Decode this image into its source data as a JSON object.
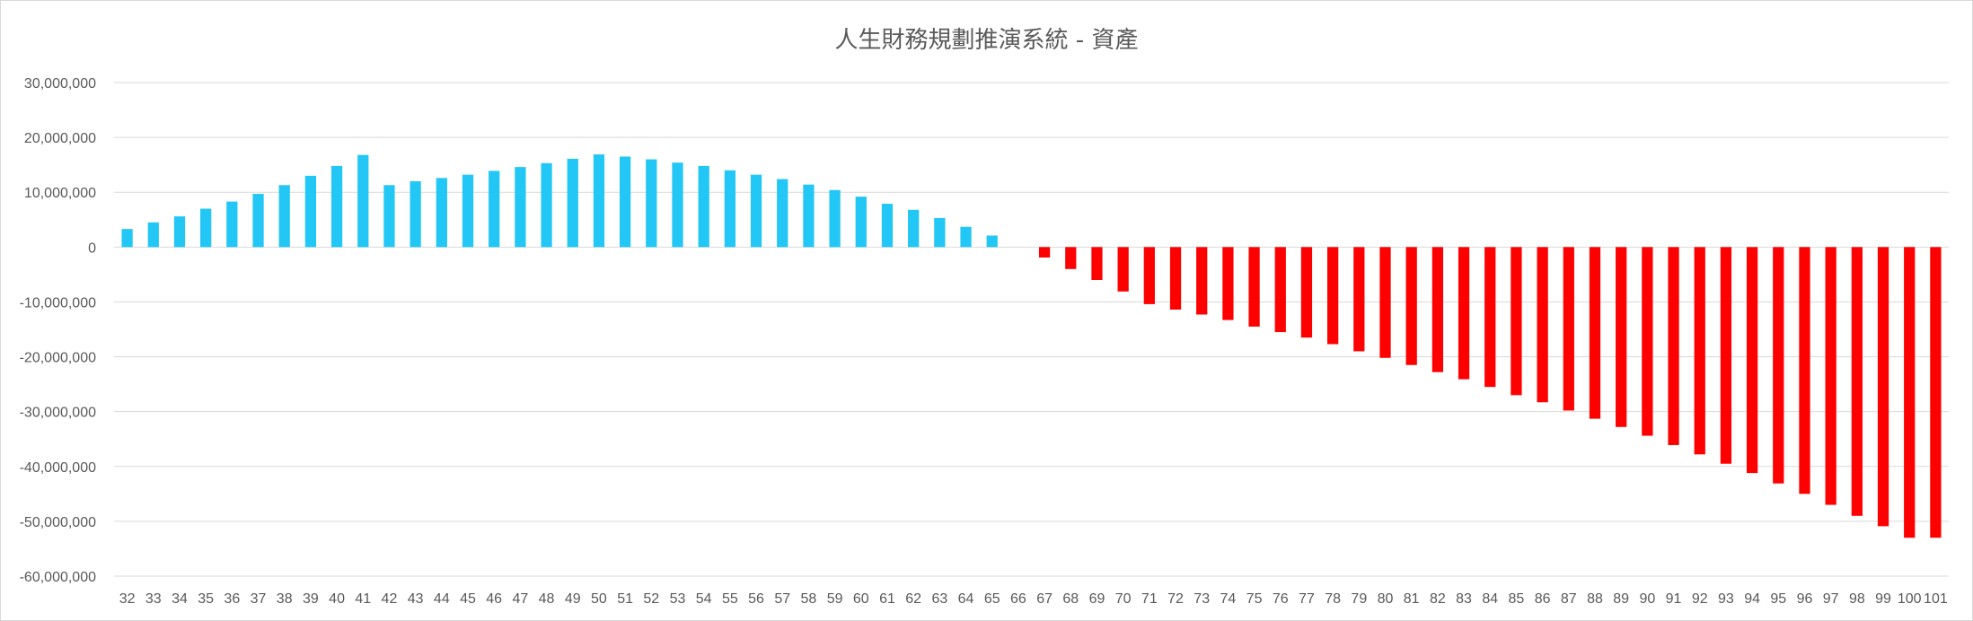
{
  "chart_data": {
    "type": "bar",
    "title": "人生財務規劃推演系統 - 資產",
    "xlabel": "",
    "ylabel": "",
    "ylim": [
      -60000000,
      30000000
    ],
    "yticks": [
      30000000,
      20000000,
      10000000,
      0,
      -10000000,
      -20000000,
      -30000000,
      -40000000,
      -50000000,
      -60000000
    ],
    "ytick_labels": [
      "30,000,000",
      "20,000,000",
      "10,000,000",
      "0",
      "-10,000,000",
      "-20,000,000",
      "-30,000,000",
      "-40,000,000",
      "-50,000,000",
      "-60,000,000"
    ],
    "grid": true,
    "legend": "none",
    "colors": {
      "positive": "#22c7f5",
      "negative": "#ff0000",
      "grid": "#d9d9d9",
      "text": "#595959"
    },
    "categories": [
      "32",
      "33",
      "34",
      "35",
      "36",
      "37",
      "38",
      "39",
      "40",
      "41",
      "42",
      "43",
      "44",
      "45",
      "46",
      "47",
      "48",
      "49",
      "50",
      "51",
      "52",
      "53",
      "54",
      "55",
      "56",
      "57",
      "58",
      "59",
      "60",
      "61",
      "62",
      "63",
      "64",
      "65",
      "66",
      "67",
      "68",
      "69",
      "70",
      "71",
      "72",
      "73",
      "74",
      "75",
      "76",
      "77",
      "78",
      "79",
      "80",
      "81",
      "82",
      "83",
      "84",
      "85",
      "86",
      "87",
      "88",
      "89",
      "90",
      "91",
      "92",
      "93",
      "94",
      "95",
      "96",
      "97",
      "98",
      "99",
      "100",
      "101"
    ],
    "values": [
      3300000,
      4500000,
      5600000,
      7000000,
      8300000,
      9700000,
      11300000,
      13000000,
      14800000,
      16800000,
      11300000,
      12000000,
      12600000,
      13200000,
      13900000,
      14600000,
      15300000,
      16100000,
      16900000,
      16500000,
      16000000,
      15400000,
      14800000,
      14000000,
      13200000,
      12400000,
      11400000,
      10400000,
      9200000,
      7900000,
      6800000,
      5300000,
      3700000,
      2100000,
      0,
      -1900000,
      -4000000,
      -6000000,
      -8100000,
      -10400000,
      -11400000,
      -12300000,
      -13300000,
      -14500000,
      -15500000,
      -16500000,
      -17700000,
      -19000000,
      -20200000,
      -21500000,
      -22800000,
      -24100000,
      -25500000,
      -27000000,
      -28300000,
      -29800000,
      -31300000,
      -32800000,
      -34400000,
      -36100000,
      -37800000,
      -39500000,
      -41200000,
      -43100000,
      -45000000,
      -47000000,
      -49000000,
      -50900000,
      -53000000,
      -53000000
    ]
  }
}
